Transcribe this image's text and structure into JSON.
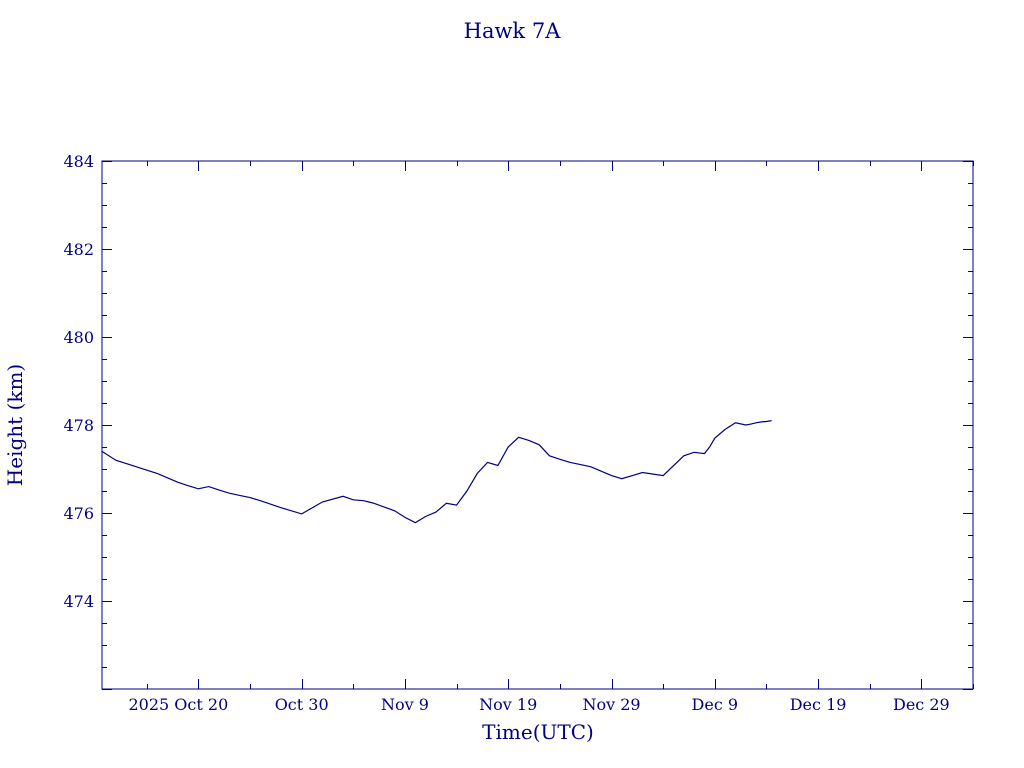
{
  "chart_data": {
    "type": "line",
    "title": "Hawk 7A",
    "xlabel": "Time(UTC)",
    "ylabel": "Height (km)",
    "x_tick_labels": [
      "2025 Oct 20",
      "Oct 30",
      "Nov  9",
      "Nov 19",
      "Nov 29",
      "Dec  9",
      "Dec 19",
      "Dec 29"
    ],
    "xlim": [
      "2025-10-10T16:00",
      "2026-01-03"
    ],
    "y_ticks": [
      "474",
      "476",
      "478",
      "480",
      "482",
      "484"
    ],
    "ylim": [
      472,
      484
    ],
    "grid": false,
    "series": [
      {
        "color": "#000080",
        "x": [
          "2025-10-10T16:00",
          "2025-10-12",
          "2025-10-14",
          "2025-10-16",
          "2025-10-18",
          "2025-10-19",
          "2025-10-20",
          "2025-10-21",
          "2025-10-22",
          "2025-10-23",
          "2025-10-24",
          "2025-10-25",
          "2025-10-26",
          "2025-10-28",
          "2025-10-30",
          "2025-11-01",
          "2025-11-03",
          "2025-11-04",
          "2025-11-05",
          "2025-11-05T12:00",
          "2025-11-06",
          "2025-11-08",
          "2025-11-09",
          "2025-11-10",
          "2025-11-11",
          "2025-11-12",
          "2025-11-13",
          "2025-11-14",
          "2025-11-15",
          "2025-11-16",
          "2025-11-17",
          "2025-11-18",
          "2025-11-19",
          "2025-11-20",
          "2025-11-21",
          "2025-11-22",
          "2025-11-23",
          "2025-11-24",
          "2025-11-25",
          "2025-11-26",
          "2025-11-27",
          "2025-11-28",
          "2025-11-29",
          "2025-11-30",
          "2025-12-02",
          "2025-12-04",
          "2025-12-06",
          "2025-12-07",
          "2025-12-08",
          "2025-12-08T12:00",
          "2025-12-09",
          "2025-12-10",
          "2025-12-11",
          "2025-12-12",
          "2025-12-12T12:00",
          "2025-12-13",
          "2025-12-13T12:00",
          "2025-12-14",
          "2025-12-14T12:00"
        ],
        "y": [
          477.4,
          477.2,
          477.05,
          476.9,
          476.7,
          476.62,
          476.55,
          476.6,
          476.52,
          476.45,
          476.4,
          476.35,
          476.28,
          476.12,
          475.98,
          476.25,
          476.38,
          476.3,
          476.28,
          476.25,
          476.22,
          476.05,
          475.9,
          475.78,
          475.92,
          476.02,
          476.22,
          476.18,
          476.5,
          476.9,
          477.15,
          477.08,
          477.5,
          477.72,
          477.65,
          477.55,
          477.3,
          477.22,
          477.15,
          477.1,
          477.05,
          476.95,
          476.85,
          476.78,
          476.92,
          476.85,
          477.3,
          477.38,
          477.35,
          477.5,
          477.7,
          477.9,
          478.05,
          478.0,
          478.02,
          478.05,
          478.07,
          478.08,
          478.1
        ]
      }
    ]
  }
}
